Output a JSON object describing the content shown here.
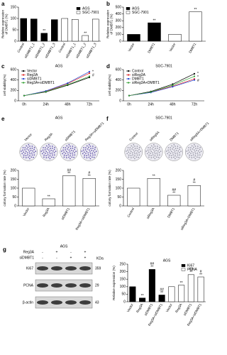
{
  "chart_data": [
    {
      "type": "bar",
      "panel": "a",
      "ylabel": [
        "Relative expression",
        "of DMBT1 (%)"
      ],
      "categories": [
        "Control",
        "siDMBT1_1",
        "siDMBT1_2",
        "siDMBT1_3",
        "Control",
        "siDMBT1_1",
        "siDMBT1_2",
        "siDMBT1_3"
      ],
      "series": [
        {
          "name": "AGS",
          "color": "#000000",
          "values": [
            100,
            98,
            35,
            95,
            null,
            null,
            null,
            null
          ]
        },
        {
          "name": "SGC-7901",
          "color": "#ffffff",
          "values": [
            null,
            null,
            null,
            null,
            100,
            96,
            25,
            97
          ]
        }
      ],
      "ylim": [
        0,
        150
      ],
      "yticks": [
        0,
        50,
        100,
        150
      ],
      "legend": "upper right",
      "annotations": [
        {
          "text": "**",
          "index": 2
        },
        {
          "text": "**",
          "index": 6
        }
      ]
    },
    {
      "type": "bar",
      "panel": "b",
      "ylabel": [
        "Relative expression",
        "of DMBT1 (%)"
      ],
      "categories": [
        "Vector",
        "DMBT1",
        "Vector",
        "DMBT1"
      ],
      "series": [
        {
          "name": "AGS",
          "color": "#000000",
          "values": [
            100,
            270,
            null,
            null
          ]
        },
        {
          "name": "SGC-7901",
          "color": "#ffffff",
          "values": [
            null,
            null,
            100,
            430
          ]
        }
      ],
      "ylim": [
        0,
        500
      ],
      "yticks": [
        0,
        100,
        200,
        300,
        400,
        500
      ],
      "legend": "upper left",
      "annotations": [
        {
          "text": "**",
          "index": 1
        },
        {
          "text": "**",
          "index": 3
        }
      ]
    },
    {
      "type": "line",
      "panel": "c",
      "title": "AGS",
      "ylabel": [
        "cell viability(%)"
      ],
      "categories": [
        "0h",
        "24h",
        "48h",
        "72h"
      ],
      "series": [
        {
          "name": "Vector",
          "color": "#000000",
          "values": [
            100,
            170,
            300,
            450
          ]
        },
        {
          "name": "Reg3A",
          "color": "#e02020",
          "values": [
            100,
            180,
            330,
            530
          ]
        },
        {
          "name": "siDMBT1",
          "color": "#2040d0",
          "values": [
            100,
            190,
            340,
            560
          ]
        },
        {
          "name": "Reg3A+siDMBT1",
          "color": "#30a030",
          "values": [
            100,
            175,
            310,
            470
          ]
        }
      ],
      "ylim": [
        0,
        600
      ],
      "yticks": [
        0,
        200,
        400,
        600
      ],
      "legend": "upper left",
      "annotations": [
        {
          "text": "*",
          "index": 3
        },
        {
          "text": "#",
          "index": 3
        }
      ]
    },
    {
      "type": "line",
      "panel": "d",
      "title": "SGC-7901",
      "ylabel": [
        "cell viability(%)"
      ],
      "categories": [
        "0h",
        "24h",
        "48h",
        "72h"
      ],
      "series": [
        {
          "name": "Control",
          "color": "#000000",
          "values": [
            100,
            180,
            320,
            520
          ]
        },
        {
          "name": "siReg3A",
          "color": "#e02020",
          "values": [
            100,
            165,
            280,
            420
          ]
        },
        {
          "name": "DMBT1",
          "color": "#2040d0",
          "values": [
            100,
            160,
            270,
            400
          ]
        },
        {
          "name": "siReg3A+DMBT1",
          "color": "#30a030",
          "values": [
            100,
            170,
            300,
            470
          ]
        }
      ],
      "ylim": [
        0,
        600
      ],
      "yticks": [
        0,
        200,
        400,
        600
      ],
      "legend": "upper left",
      "annotations": [
        {
          "text": "*",
          "index": 3
        },
        {
          "text": "*",
          "index": 3
        },
        {
          "text": "#",
          "index": 3
        }
      ]
    },
    {
      "type": "bar",
      "panel": "e",
      "title": "AGS",
      "ylabel": [
        "colony formation rate (%)"
      ],
      "categories": [
        "Vector",
        "Reg3A",
        "siDMBT1",
        "Reg3A+siDMBT1"
      ],
      "values": [
        100,
        40,
        170,
        155
      ],
      "color": "#ffffff",
      "plate_color": "#6a5cb0",
      "ylim": [
        0,
        200
      ],
      "yticks": [
        0,
        50,
        100,
        150,
        200
      ],
      "annotations": [
        {
          "text": "**",
          "index": 1
        },
        {
          "text": "##",
          "index": 2
        },
        {
          "text": "**",
          "index": 2
        },
        {
          "text": "#",
          "index": 3
        },
        {
          "text": "**",
          "index": 3
        }
      ]
    },
    {
      "type": "bar",
      "panel": "f",
      "title": "SGC-7901",
      "ylabel": [
        "colony formation rate (%)"
      ],
      "categories": [
        "Control",
        "siReg3A",
        "DMBT1",
        "siReg3A+DMBT1"
      ],
      "values": [
        100,
        155,
        60,
        115
      ],
      "color": "#ffffff",
      "plate_color": "#9a9aa8",
      "ylim": [
        0,
        200
      ],
      "yticks": [
        0,
        50,
        100,
        150,
        200
      ],
      "annotations": [
        {
          "text": "**",
          "index": 1
        },
        {
          "text": "##",
          "index": 2
        },
        {
          "text": "**",
          "index": 2
        },
        {
          "text": "#",
          "index": 3
        },
        {
          "text": "**",
          "index": 3
        }
      ]
    },
    {
      "type": "bar",
      "panel": "g",
      "title": "AGS",
      "ylabel": [
        "Relative expression (%)"
      ],
      "categories": [
        "Vector",
        "Reg3A",
        "siDMBT1",
        "Reg3A+siDMBT1",
        "Vector",
        "Reg3A",
        "siDMBT1",
        "Reg3A+siDMBT1"
      ],
      "series": [
        {
          "name": "Ki67",
          "color": "#000000",
          "values": [
            100,
            25,
            215,
            45,
            null,
            null,
            null,
            null
          ]
        },
        {
          "name": "PCNA",
          "color": "#ffffff",
          "values": [
            null,
            null,
            null,
            null,
            100,
            110,
            180,
            165
          ]
        }
      ],
      "ylim": [
        0,
        250
      ],
      "yticks": [
        0,
        50,
        100,
        150,
        200,
        250
      ],
      "legend": "upper right",
      "annotations": [
        {
          "text": "**",
          "index": 1
        },
        {
          "text": "##",
          "index": 2
        },
        {
          "text": "**",
          "index": 2
        },
        {
          "text": "##",
          "index": 3
        },
        {
          "text": "**",
          "index": 3
        },
        {
          "text": "**",
          "index": 5
        },
        {
          "text": "##",
          "index": 6
        },
        {
          "text": "**",
          "index": 6
        },
        {
          "text": "#",
          "index": 7
        },
        {
          "text": "**",
          "index": 7
        }
      ]
    }
  ],
  "blot": {
    "title": "AGS",
    "unit": "KDa",
    "rows": [
      {
        "name": "Reg3A",
        "signs": [
          "-",
          "+",
          "-",
          "+"
        ]
      },
      {
        "name": "siDMBT1",
        "signs": [
          "-",
          "-",
          "+",
          "+"
        ]
      }
    ],
    "bands": [
      {
        "name": "Ki67",
        "kda": 359
      },
      {
        "name": "PCNA",
        "kda": 29
      },
      {
        "name": "β-actin",
        "kda": 43
      }
    ]
  }
}
